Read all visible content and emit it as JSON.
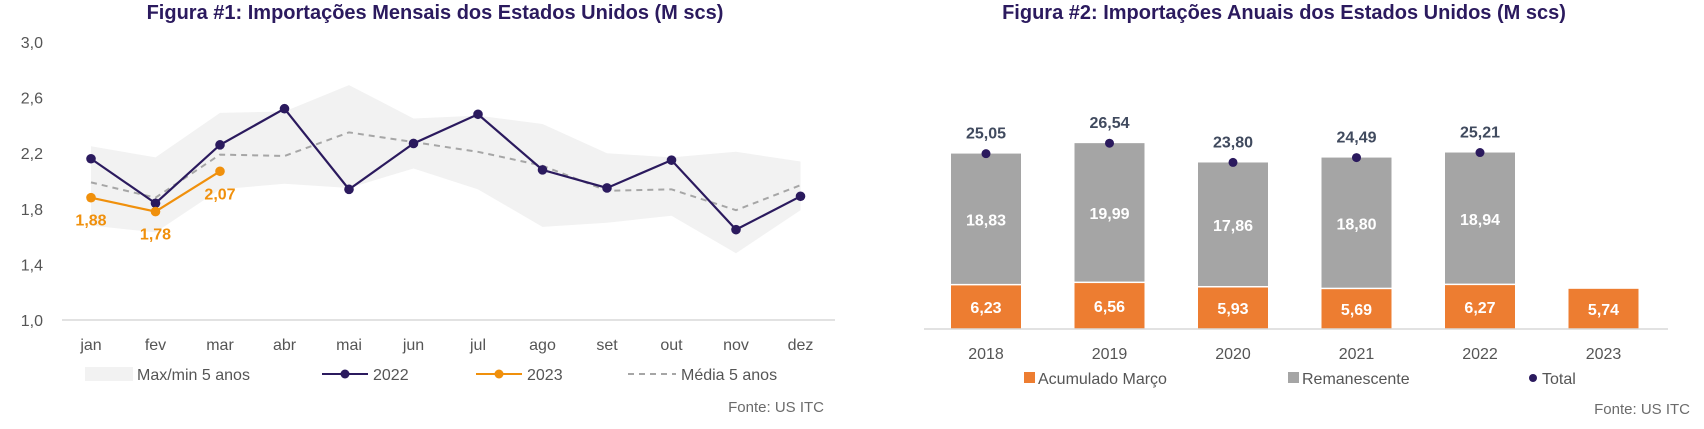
{
  "charts": [
    {
      "type": "line",
      "title": "Figura #1: Importações Mensais dos Estados Unidos (M scs)",
      "categories": [
        "jan",
        "fev",
        "mar",
        "abr",
        "mai",
        "jun",
        "jul",
        "ago",
        "set",
        "out",
        "nov",
        "dez"
      ],
      "y_ticks": [
        "1,0",
        "1,4",
        "1,8",
        "2,2",
        "2,6",
        "3,0"
      ],
      "ylim": [
        1.0,
        3.0
      ],
      "band": {
        "name": "Max/min 5 anos",
        "max": [
          2.25,
          2.17,
          2.49,
          2.5,
          2.69,
          2.45,
          2.47,
          2.41,
          2.2,
          2.17,
          2.21,
          2.14
        ],
        "min": [
          1.68,
          1.63,
          1.94,
          1.98,
          1.95,
          2.09,
          1.94,
          1.67,
          1.7,
          1.75,
          1.48,
          1.79
        ]
      },
      "series": [
        {
          "name": "2022",
          "values": [
            2.16,
            1.84,
            2.26,
            2.52,
            1.94,
            2.27,
            2.48,
            2.08,
            1.95,
            2.15,
            1.65,
            1.89
          ],
          "color": "#2b1a5e"
        },
        {
          "name": "2023",
          "values": [
            1.88,
            1.78,
            2.07
          ],
          "labels": [
            "1,88",
            "1,78",
            "2,07"
          ],
          "color": "#f0900c"
        },
        {
          "name": "Média 5 anos",
          "values": [
            1.99,
            1.88,
            2.19,
            2.18,
            2.35,
            2.28,
            2.21,
            2.11,
            1.93,
            1.94,
            1.79,
            1.97
          ],
          "color": "#a6a6a6",
          "dashed": true
        }
      ],
      "source": "Fonte: US ITC"
    },
    {
      "type": "bar",
      "stacked": true,
      "title": "Figura #2: Importações Anuais dos Estados Unidos (M scs)",
      "categories": [
        "2018",
        "2019",
        "2020",
        "2021",
        "2022",
        "2023"
      ],
      "series": [
        {
          "name": "Acumulado Março",
          "values": [
            6.23,
            6.56,
            5.93,
            5.69,
            6.27,
            5.74
          ],
          "labels": [
            "6,23",
            "6,56",
            "5,93",
            "5,69",
            "6,27",
            "5,74"
          ],
          "color": "#ed7d31"
        },
        {
          "name": "Remanescente",
          "values": [
            18.83,
            19.99,
            17.86,
            18.8,
            18.94,
            null
          ],
          "labels": [
            "18,83",
            "19,99",
            "17,86",
            "18,80",
            "18,94",
            ""
          ],
          "color": "#a5a5a5"
        },
        {
          "name": "Total",
          "values": [
            25.05,
            26.54,
            23.8,
            24.49,
            25.21,
            null
          ],
          "labels": [
            "25,05",
            "26,54",
            "23,80",
            "24,49",
            "25,21",
            ""
          ],
          "color": "#2b1a5e"
        }
      ],
      "ylim": [
        0,
        30
      ],
      "source": "Fonte: US ITC"
    }
  ]
}
